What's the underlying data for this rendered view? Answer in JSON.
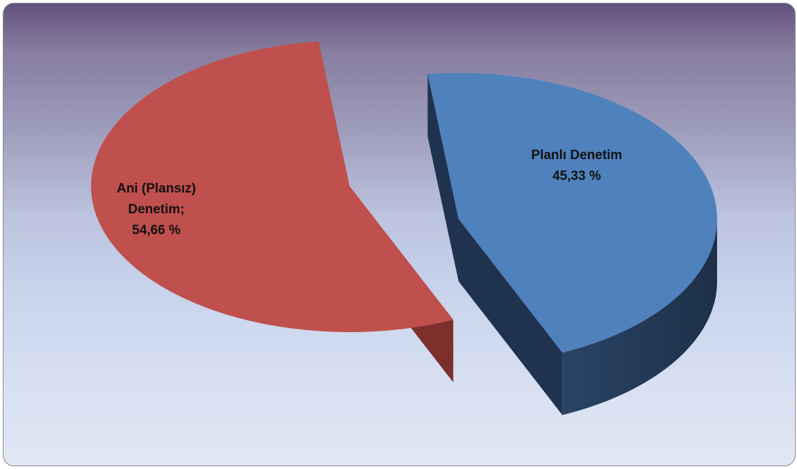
{
  "chart_data": {
    "type": "pie",
    "title": "",
    "categories": [
      "Ani (Plansız) Denetim",
      "Planlı Denetim"
    ],
    "values": [
      54.66,
      45.33
    ],
    "labels": [
      {
        "lines": [
          "Ani (Plansız)",
          "Denetim;",
          "54,66 %"
        ]
      },
      {
        "lines": [
          "Planlı Denetim",
          "45,33 %"
        ]
      }
    ],
    "colors": [
      "#c0504d",
      "#4f81bd"
    ],
    "side_colors": [
      "#7d2f2c",
      "#1f3350"
    ],
    "style": "3d-exploded",
    "legend": "none"
  }
}
